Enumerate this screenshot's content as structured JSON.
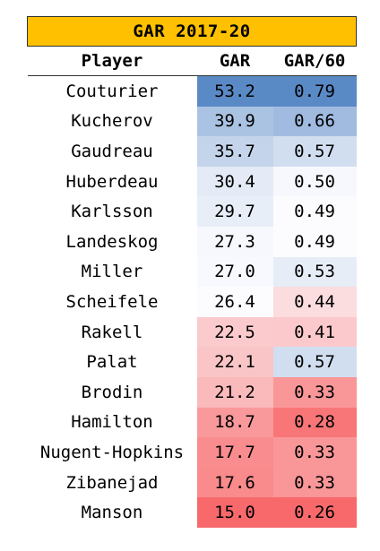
{
  "chart_data": {
    "type": "table",
    "title": "GAR 2017-20",
    "columns": [
      "Player",
      "GAR",
      "GAR/60"
    ],
    "rows": [
      {
        "player": "Couturier",
        "gar": "53.2",
        "gar60": "0.79"
      },
      {
        "player": "Kucherov",
        "gar": "39.9",
        "gar60": "0.66"
      },
      {
        "player": "Gaudreau",
        "gar": "35.7",
        "gar60": "0.57"
      },
      {
        "player": "Huberdeau",
        "gar": "30.4",
        "gar60": "0.50"
      },
      {
        "player": "Karlsson",
        "gar": "29.7",
        "gar60": "0.49"
      },
      {
        "player": "Landeskog",
        "gar": "27.3",
        "gar60": "0.49"
      },
      {
        "player": "Miller",
        "gar": "27.0",
        "gar60": "0.53"
      },
      {
        "player": "Scheifele",
        "gar": "26.4",
        "gar60": "0.44"
      },
      {
        "player": "Rakell",
        "gar": "22.5",
        "gar60": "0.41"
      },
      {
        "player": "Palat",
        "gar": "22.1",
        "gar60": "0.57"
      },
      {
        "player": "Brodin",
        "gar": "21.2",
        "gar60": "0.33"
      },
      {
        "player": "Hamilton",
        "gar": "18.7",
        "gar60": "0.28"
      },
      {
        "player": "Nugent-Hopkins",
        "gar": "17.7",
        "gar60": "0.33"
      },
      {
        "player": "Zibanejad",
        "gar": "17.6",
        "gar60": "0.33"
      },
      {
        "player": "Manson",
        "gar": "15.0",
        "gar60": "0.26"
      }
    ],
    "color_scale": {
      "low": "#F8696B",
      "mid": "#FCFCFF",
      "high": "#5A8AC6"
    },
    "title_background": "#FFC000"
  }
}
